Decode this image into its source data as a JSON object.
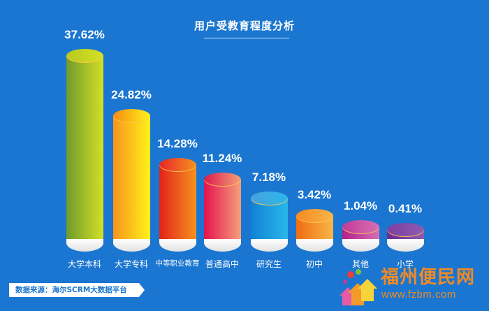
{
  "title": "用户受教育程度分析",
  "source": "数据来源：海尔SCRM大数据平台",
  "watermark": {
    "name": "福州便民网",
    "url": "www.fzbm.com",
    "color": "#f08a24"
  },
  "colors": {
    "background": "#1a76d0"
  },
  "bars": [
    {
      "label": "大学本科",
      "value": "37.62%",
      "dark": "#6f9a2c",
      "light": "#d4e024",
      "cap": "#b8c91f"
    },
    {
      "label": "大学专科",
      "value": "24.82%",
      "dark": "#f7941d",
      "light": "#fff21a",
      "cap": "#f68c14"
    },
    {
      "label": "中等职业教育",
      "value": "14.28%",
      "dark": "#e2231a",
      "light": "#f6921e",
      "cap": "#e8252b"
    },
    {
      "label": "普通高中",
      "value": "11.24%",
      "dark": "#e4124f",
      "light": "#f4a07a",
      "cap": "#dc1a4d"
    },
    {
      "label": "研究生",
      "value": "7.18%",
      "dark": "#1182d3",
      "light": "#29b7ea",
      "cap": "#4aa2dc"
    },
    {
      "label": "初中",
      "value": "3.42%",
      "dark": "#ef6c12",
      "light": "#f9b648",
      "cap": "#f38a22"
    },
    {
      "label": "其他",
      "value": "1.04%",
      "dark": "#b5208a",
      "light": "#d56fb3",
      "cap": "#c53b98"
    },
    {
      "label": "小学",
      "value": "0.41%",
      "dark": "#6b2c91",
      "light": "#8d5bb0",
      "cap": "#7e3ea2"
    }
  ],
  "chart_data": {
    "type": "bar",
    "title": "用户受教育程度分析",
    "categories": [
      "大学本科",
      "大学专科",
      "中等职业教育",
      "普通高中",
      "研究生",
      "初中",
      "其他",
      "小学"
    ],
    "values": [
      37.62,
      24.82,
      14.28,
      11.24,
      7.18,
      3.42,
      1.04,
      0.41
    ],
    "unit": "%",
    "xlabel": "",
    "ylabel": "",
    "grid": false,
    "legend": "none",
    "annotations": [
      "数据来源：海尔SCRM大数据平台"
    ]
  }
}
